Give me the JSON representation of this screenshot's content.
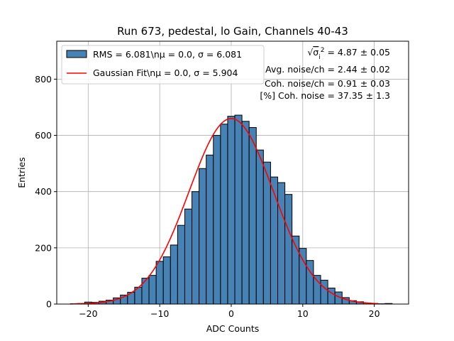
{
  "chart_data": {
    "type": "bar",
    "title": "Run 673, pedestal, lo Gain, Channels 40-43",
    "xlabel": "ADC Counts",
    "ylabel": "Entries",
    "xlim": [
      -24.4,
      24.8
    ],
    "ylim": [
      0,
      935
    ],
    "xticks": [
      -20,
      -10,
      0,
      10,
      20
    ],
    "yticks": [
      0,
      200,
      400,
      600,
      800
    ],
    "grid": true,
    "legend_position": "top-left",
    "bin_width": 1,
    "bins_x": [
      -22,
      -21,
      -20,
      -19,
      -18,
      -17,
      -16,
      -15,
      -14,
      -13,
      -12,
      -11,
      -10,
      -9,
      -8,
      -7,
      -6,
      -5,
      -4,
      -3,
      -2,
      -1,
      0,
      1,
      2,
      3,
      4,
      5,
      6,
      7,
      8,
      9,
      10,
      11,
      12,
      13,
      14,
      15,
      16,
      17,
      18,
      19,
      20,
      21,
      22
    ],
    "values": [
      1,
      2,
      7,
      6,
      10,
      14,
      22,
      32,
      42,
      60,
      92,
      102,
      152,
      168,
      210,
      280,
      338,
      400,
      482,
      530,
      600,
      640,
      668,
      672,
      650,
      628,
      548,
      505,
      452,
      432,
      390,
      242,
      198,
      155,
      102,
      85,
      57,
      43,
      23,
      12,
      8,
      4,
      2,
      1,
      2
    ],
    "series": [
      {
        "name": "RMS = 6.081\\nμ = 0.0, σ = 6.081",
        "kind": "histogram",
        "color": "#4682b4",
        "edgecolor": "#000000"
      },
      {
        "name": "Gaussian Fit\\nμ = 0.0, σ = 5.904",
        "kind": "line",
        "color": "#ff0000",
        "mu": 0.0,
        "sigma": 5.904,
        "amplitude": 660,
        "x_range": [
          -22.5,
          20.5
        ]
      }
    ],
    "annotations": [
      {
        "prefix": "√",
        "symbol": "σ",
        "sub": "i",
        "sup": "2",
        "text": " = 4.87 ± 0.05"
      },
      {
        "text": "Avg. noise/ch = 2.44 ± 0.02"
      },
      {
        "text": "Coh. noise/ch = 0.91 ± 0.03"
      },
      {
        "text": "[%] Coh. noise = 37.35 ± 1.3"
      }
    ]
  }
}
